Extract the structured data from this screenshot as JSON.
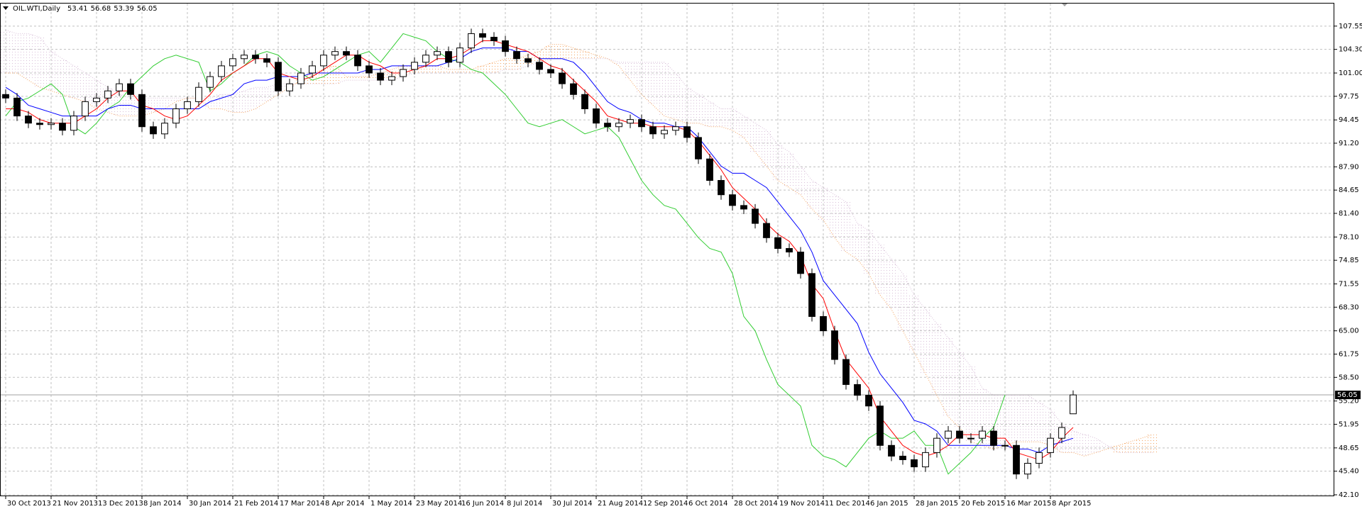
{
  "chart_data": {
    "type": "candlestick",
    "title": "OIL.WTI,Daily",
    "xlim": [
      -0.5,
      117
    ],
    "xticks": [
      {
        "value": 0,
        "label": "30 Oct 2013"
      },
      {
        "value": 4,
        "label": "21 Nov 2013"
      },
      {
        "value": 8,
        "label": "13 Dec 2013"
      },
      {
        "value": 12,
        "label": "8 Jan 2014"
      },
      {
        "value": 16,
        "label": "30 Jan 2014"
      },
      {
        "value": 20,
        "label": "21 Feb 2014"
      },
      {
        "value": 24,
        "label": "17 Mar 2014"
      },
      {
        "value": 28,
        "label": "8 Apr 2014"
      },
      {
        "value": 32,
        "label": "1 May 2014"
      },
      {
        "value": 36,
        "label": "23 May 2014"
      },
      {
        "value": 40,
        "label": "16 Jun 2014"
      },
      {
        "value": 44,
        "label": "8 Jul 2014"
      },
      {
        "value": 48,
        "label": "30 Jul 2014"
      },
      {
        "value": 52,
        "label": "21 Aug 2014"
      },
      {
        "value": 56,
        "label": "12 Sep 2014"
      },
      {
        "value": 60,
        "label": "6 Oct 2014"
      },
      {
        "value": 64,
        "label": "28 Oct 2014"
      },
      {
        "value": 68,
        "label": "19 Nov 2014"
      },
      {
        "value": 72,
        "label": "11 Dec 2014"
      },
      {
        "value": 76,
        "label": "6 Jan 2015"
      },
      {
        "value": 80,
        "label": "28 Jan 2015"
      },
      {
        "value": 84,
        "label": "20 Feb 2015"
      },
      {
        "value": 88,
        "label": "16 Mar 2015"
      },
      {
        "value": 92,
        "label": "8 Apr 2015"
      }
    ],
    "ylim": [
      41.9,
      110.7
    ],
    "yticks": [
      107.55,
      {
        "value": 104.3,
        "label": "104.30"
      },
      {
        "value": 101,
        "label": "101.00"
      },
      97.75,
      94.45,
      {
        "value": 91.2,
        "label": "91.20"
      },
      {
        "value": 87.9,
        "label": "87.90"
      },
      84.65,
      {
        "value": 81.4,
        "label": "81.40"
      },
      {
        "value": 78.1,
        "label": "78.10"
      },
      74.85,
      71.55,
      {
        "value": 68.3,
        "label": "68.30"
      },
      {
        "value": 65,
        "label": "65.00"
      },
      61.75,
      {
        "value": 58.5,
        "label": "58.50"
      },
      {
        "value": 55.2,
        "label": "55.20"
      },
      51.95,
      48.65,
      {
        "value": 45.4,
        "label": "45.40"
      },
      {
        "value": 42.1,
        "label": "42.10"
      }
    ],
    "grid": true,
    "last_price_line": true,
    "up_color": "#ffffff",
    "down_color": "#000000",
    "open": [
      98,
      97.5,
      95,
      94,
      93.8,
      94,
      93,
      95,
      97,
      97.5,
      98.5,
      99.5,
      98,
      93.5,
      92.5,
      94,
      96,
      97,
      99,
      100.5,
      102,
      103,
      103.5,
      103,
      102.5,
      98.5,
      99.5,
      101,
      102,
      103.5,
      104,
      103.5,
      102,
      101,
      100,
      100.5,
      101.5,
      102.5,
      103.5,
      104,
      102.5,
      104.5,
      106.5,
      106,
      105.5,
      104,
      103,
      102.5,
      101.5,
      101,
      99.5,
      98,
      96,
      94,
      93.5,
      94,
      94.5,
      93.5,
      92.5,
      93,
      93.5,
      92,
      89,
      86,
      84,
      82.5,
      82,
      80,
      78,
      76.5,
      76,
      73,
      67,
      65,
      61,
      57.5,
      56,
      54.5,
      49,
      47.5,
      47,
      46,
      48,
      50,
      51,
      50,
      50,
      51,
      49,
      49,
      45,
      46.5,
      48,
      50,
      53.41
    ],
    "high": [
      98.7,
      98.2,
      95.7,
      94.7,
      94.7,
      94.7,
      95.7,
      97.7,
      98.2,
      99.2,
      100.2,
      100.2,
      98.7,
      94.2,
      94.7,
      96.7,
      97.7,
      99.7,
      101.2,
      102.7,
      103.7,
      104.2,
      104.2,
      103.7,
      103.2,
      100.2,
      101.7,
      102.7,
      104.2,
      104.7,
      104.7,
      104.2,
      102.7,
      101.7,
      101.2,
      102.2,
      103.2,
      104.2,
      104.7,
      104.7,
      105.2,
      107.2,
      107.2,
      106.7,
      106.2,
      104.7,
      103.7,
      103.2,
      102.2,
      101.7,
      100.2,
      98.7,
      96.7,
      94.7,
      94.7,
      95.2,
      95.2,
      94.2,
      93.7,
      94.2,
      94.2,
      92.7,
      89.7,
      86.7,
      84.7,
      83.2,
      82.7,
      80.7,
      78.7,
      77.2,
      76.7,
      73.7,
      67.7,
      65.7,
      61.7,
      58.2,
      56.7,
      55.2,
      49.7,
      48.2,
      47.7,
      48.7,
      50.7,
      51.7,
      51.7,
      50.7,
      51.7,
      51.7,
      49.7,
      49.7,
      47.2,
      48.7,
      50.7,
      52.2,
      56.68
    ],
    "low": [
      96.8,
      94.3,
      93.3,
      93.1,
      93.1,
      92.3,
      92.3,
      94.3,
      96.3,
      96.8,
      97.8,
      97.3,
      92.8,
      91.8,
      91.8,
      93.3,
      95.3,
      96.3,
      98.3,
      99.8,
      101.3,
      102.3,
      102.3,
      101.8,
      97.8,
      97.8,
      98.8,
      100.3,
      101.3,
      102.8,
      102.8,
      101.3,
      100.3,
      99.3,
      99.3,
      99.8,
      100.8,
      101.8,
      102.8,
      101.8,
      101.8,
      103.8,
      105.3,
      104.8,
      103.3,
      102.3,
      101.8,
      100.8,
      100.3,
      98.8,
      97.3,
      95.3,
      93.3,
      92.8,
      92.8,
      93.3,
      92.8,
      91.8,
      91.8,
      92.3,
      91.3,
      88.3,
      85.3,
      83.3,
      81.8,
      81.3,
      79.3,
      77.3,
      75.8,
      75.3,
      72.3,
      66.3,
      64.3,
      60.3,
      56.8,
      55.3,
      53.8,
      48.3,
      46.8,
      46.3,
      45.3,
      45.3,
      47.3,
      49.3,
      49.3,
      49.3,
      49.3,
      48.3,
      48.3,
      44.3,
      44.3,
      45.8,
      47.3,
      49.3,
      53.39
    ],
    "close": [
      97.5,
      95,
      94,
      93.8,
      94,
      93,
      95,
      97,
      97.5,
      98.5,
      99.5,
      98,
      93.5,
      92.5,
      94,
      96,
      97,
      99,
      100.5,
      102,
      103,
      103.5,
      103,
      102.5,
      98.5,
      99.5,
      101,
      102,
      103.5,
      104,
      103.5,
      102,
      101,
      100,
      100.5,
      101.5,
      102.5,
      103.5,
      104,
      102.5,
      104.5,
      106.5,
      106,
      105.5,
      104,
      103,
      102.5,
      101.5,
      101,
      99.5,
      98,
      96,
      94,
      93.5,
      94,
      94.5,
      93.5,
      92.5,
      93,
      93.5,
      92,
      89,
      86,
      84,
      82.5,
      82,
      80,
      78,
      76.5,
      76,
      73,
      67,
      65,
      61,
      57.5,
      56,
      54.5,
      49,
      47.5,
      47,
      46,
      48,
      50,
      51,
      50,
      50,
      51,
      49,
      49,
      45,
      46.5,
      48,
      50,
      51.5,
      56.05
    ],
    "series": [
      {
        "color": "#f4a460",
        "style": "dotted",
        "values": [
          101,
          101,
          100,
          99,
          98.5,
          98,
          97.5,
          97,
          96,
          95.5,
          95,
          95,
          95,
          95.5,
          96,
          97,
          97.5,
          97.5,
          96,
          96,
          95.5,
          95.5,
          96,
          97,
          98,
          99,
          100,
          101,
          101.5,
          102,
          100.5,
          100.5,
          100.5,
          101,
          101.5,
          102,
          102,
          102,
          102,
          101.5,
          101.5,
          101.5,
          102,
          102.5,
          103,
          103,
          103.5,
          104,
          105,
          105,
          104.5,
          104,
          103.5,
          103,
          102,
          100,
          98,
          96.5,
          95,
          94.5,
          94,
          94,
          93.5,
          93.5,
          93,
          92,
          90,
          88,
          86,
          85,
          84,
          82,
          80.5,
          78,
          76,
          75,
          73,
          70,
          68,
          65,
          62,
          59,
          56,
          53,
          51.5,
          49.5,
          49,
          48.5,
          49,
          49.5,
          49.5,
          49.5,
          49,
          48,
          48,
          47.5,
          48,
          48.5,
          49,
          49.5,
          50,
          50.5
        ]
      },
      {
        "color": "#d8bfd8",
        "style": "dotted",
        "values": [
          107,
          106.5,
          106.5,
          106,
          104,
          103,
          102,
          101,
          100,
          99,
          98,
          97.5,
          97.5,
          97.5,
          97.5,
          97.5,
          97.5,
          97.5,
          97.5,
          98,
          98,
          98.5,
          99,
          99,
          99.5,
          99.5,
          99.5,
          99.5,
          99.5,
          99.5,
          100,
          100,
          100,
          100,
          100,
          100.5,
          101,
          101,
          101,
          101,
          101,
          101,
          101,
          101,
          101.5,
          101.5,
          102,
          102.5,
          103,
          103,
          103,
          103,
          103,
          103,
          102.5,
          102.5,
          102.5,
          102.5,
          102.5,
          101,
          99,
          98,
          97,
          96,
          96,
          95,
          94,
          93,
          91,
          90,
          88,
          86,
          85,
          84,
          83,
          80,
          79,
          77,
          75,
          73,
          70,
          68,
          66,
          64,
          62,
          60,
          57,
          56,
          56,
          56,
          56,
          55,
          54,
          52,
          51,
          50.5,
          50,
          49,
          48,
          48,
          48,
          48
        ]
      },
      {
        "color": "#32cd32",
        "values": [
          95,
          97,
          97.5,
          98.5,
          99.5,
          98,
          93.5,
          92.5,
          94,
          96,
          97,
          99,
          100.5,
          102,
          103,
          103.5,
          103,
          102.5,
          98.5,
          99.5,
          101,
          102,
          103.5,
          104,
          103.5,
          102,
          101,
          100,
          100.5,
          101.5,
          102.5,
          103.5,
          104,
          102.5,
          104.5,
          106.5,
          106,
          105.5,
          104,
          103,
          102.5,
          101.5,
          101,
          99.5,
          98,
          96,
          94,
          93.5,
          94,
          94.5,
          93.5,
          92.5,
          93,
          93.5,
          92,
          89,
          86,
          84,
          82.5,
          82,
          80,
          78,
          76.5,
          76,
          73,
          67,
          65,
          61,
          57.5,
          56,
          54.5,
          49,
          47.5,
          47,
          46,
          48,
          50,
          51,
          50,
          50,
          51,
          49,
          49,
          45,
          46.5,
          48,
          50,
          51.5,
          56.05
        ]
      },
      {
        "color": "#0000ff",
        "values": [
          99,
          98,
          96.5,
          96,
          95.5,
          95,
          95,
          95,
          95,
          96,
          96.5,
          96.5,
          96,
          96,
          96,
          96,
          96,
          96,
          97,
          97.5,
          98,
          99.5,
          100,
          100,
          100.5,
          100.5,
          100.5,
          101,
          101,
          101,
          101,
          101,
          101.5,
          101.5,
          102,
          102,
          102,
          102,
          102,
          102.5,
          103,
          104,
          104.5,
          104.5,
          104.5,
          104,
          104,
          103,
          103,
          103,
          102.5,
          101,
          99,
          97,
          96,
          95.5,
          94.5,
          94,
          94,
          93.5,
          93.5,
          92,
          90,
          88,
          87,
          87,
          86,
          85,
          83,
          81,
          79,
          76,
          72,
          70,
          68,
          66,
          62,
          59,
          57,
          55,
          52.5,
          52,
          51,
          49,
          49,
          49,
          49,
          49,
          49,
          48.5,
          48.5,
          48,
          49,
          49.5,
          50
        ]
      },
      {
        "color": "#ff0000",
        "values": [
          96,
          96,
          95.5,
          94.5,
          94,
          94,
          94,
          95,
          96,
          97.5,
          98.5,
          98.5,
          96.5,
          96,
          95,
          94.5,
          95,
          96.5,
          98,
          100,
          101,
          102,
          103,
          103,
          101,
          100.5,
          100,
          100.5,
          101.5,
          102.5,
          103.5,
          103.5,
          102.5,
          102,
          101,
          101,
          101.5,
          102,
          103,
          103,
          103.5,
          104.5,
          105.5,
          105.5,
          105,
          104.5,
          104,
          103,
          102,
          101.5,
          100,
          98.5,
          97,
          95,
          94.5,
          94,
          94,
          93.5,
          93.5,
          93.5,
          93,
          91.5,
          89.5,
          87.5,
          85,
          83.5,
          82,
          80,
          78.5,
          77.5,
          75.5,
          71.5,
          69.5,
          65,
          61,
          59,
          57,
          53,
          51,
          49,
          48,
          47.5,
          48,
          49,
          50.5,
          50.5,
          50.5,
          50,
          50,
          48,
          47.5,
          47,
          48,
          50,
          51.5
        ]
      }
    ]
  }
}
